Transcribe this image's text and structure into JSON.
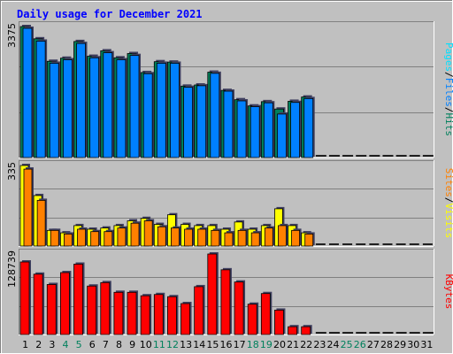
{
  "chart_data": {
    "type": "bar",
    "title": "Daily usage for December 2021",
    "categories": [
      "1",
      "2",
      "3",
      "4",
      "5",
      "6",
      "7",
      "8",
      "9",
      "10",
      "11",
      "12",
      "13",
      "14",
      "15",
      "16",
      "17",
      "18",
      "19",
      "20",
      "21",
      "22",
      "23",
      "24",
      "25",
      "26",
      "27",
      "28",
      "29",
      "30",
      "31"
    ],
    "weekend_days": [
      "4",
      "5",
      "11",
      "12",
      "18",
      "19",
      "25",
      "26"
    ],
    "panels": [
      {
        "name": "hits-files-pages",
        "ymax": 3375,
        "ymax_label": "3375",
        "right_labels": [
          "Pages",
          "/",
          "Files",
          "/",
          "Hits"
        ],
        "series": [
          {
            "name": "Hits",
            "values": [
              3375,
              3060,
              2480,
              2560,
              2990,
              2610,
              2750,
              2570,
              2680,
              2190,
              2470,
              2460,
              1840,
              1870,
              2200,
              1730,
              1490,
              1330,
              1440,
              1250,
              1450,
              1560,
              0,
              0,
              0,
              0,
              0,
              0,
              0,
              0,
              0
            ]
          },
          {
            "name": "Files",
            "values": [
              3330,
              3000,
              2430,
              2520,
              2940,
              2570,
              2700,
              2520,
              2630,
              2160,
              2430,
              2430,
              1810,
              1850,
              2170,
              1710,
              1460,
              1310,
              1410,
              1120,
              1420,
              1520,
              0,
              0,
              0,
              0,
              0,
              0,
              0,
              0,
              0
            ]
          },
          {
            "name": "Pages",
            "values": [
              0,
              0,
              0,
              0,
              0,
              0,
              0,
              0,
              0,
              0,
              0,
              0,
              0,
              0,
              0,
              0,
              0,
              0,
              0,
              0,
              0,
              0,
              0,
              0,
              0,
              0,
              0,
              0,
              0,
              0,
              0
            ]
          }
        ]
      },
      {
        "name": "visits-sites",
        "ymax": 335,
        "ymax_label": "335",
        "right_labels": [
          "Sites",
          "/",
          "Visits"
        ],
        "series": [
          {
            "name": "Visits",
            "values": [
              335,
              210,
              65,
              55,
              85,
              70,
              75,
              85,
              105,
              115,
              90,
              130,
              90,
              85,
              85,
              70,
              100,
              70,
              85,
              155,
              85,
              55,
              0,
              0,
              0,
              0,
              0,
              0,
              0,
              0,
              0
            ]
          },
          {
            "name": "Sites",
            "values": [
              320,
              190,
              65,
              50,
              70,
              60,
              60,
              75,
              95,
              105,
              80,
              75,
              70,
              70,
              65,
              55,
              65,
              55,
              75,
              85,
              65,
              50,
              0,
              0,
              0,
              0,
              0,
              0,
              0,
              0,
              0
            ]
          }
        ]
      },
      {
        "name": "kbytes",
        "ymax": 128739,
        "ymax_label": "128739",
        "right_labels": [
          "KBytes"
        ],
        "series": [
          {
            "name": "KBytes",
            "values": [
              116000,
              96500,
              80000,
              99000,
              112500,
              77500,
              83000,
              67500,
              67500,
              62000,
              64000,
              60500,
              49500,
              76500,
              128739,
              103500,
              84000,
              48500,
              65500,
              39000,
              12500,
              12500,
              0,
              0,
              0,
              0,
              0,
              0,
              0,
              0,
              0
            ]
          }
        ]
      }
    ],
    "colors": {
      "background": "#c0c0c0",
      "title": "#0000ff",
      "pages": "#00e0ff",
      "files": "#0080ff",
      "hits": "#00805c",
      "visits": "#ffff00",
      "sites": "#ff8000",
      "kbytes": "#ff0000",
      "weekend": "#00805c",
      "shadow": "#404060",
      "grid": "#808080"
    }
  }
}
